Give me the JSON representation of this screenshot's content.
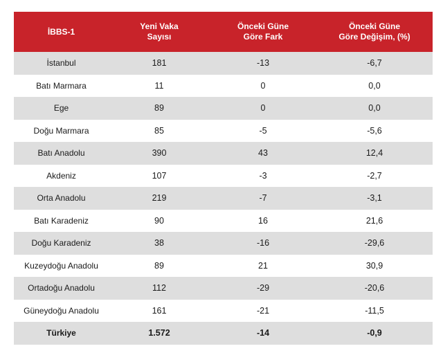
{
  "table": {
    "headers": [
      {
        "line1": "İBBS-1",
        "line2": ""
      },
      {
        "line1": "Yeni Vaka",
        "line2": "Sayısı"
      },
      {
        "line1": "Önceki Güne",
        "line2": "Göre Fark"
      },
      {
        "line1": "Önceki Güne",
        "line2": "Göre Değişim, (%)"
      }
    ],
    "rows": [
      {
        "region": "İstanbul",
        "new_cases": "181",
        "diff": "-13",
        "change": "-6,7"
      },
      {
        "region": "Batı Marmara",
        "new_cases": "11",
        "diff": "0",
        "change": "0,0"
      },
      {
        "region": "Ege",
        "new_cases": "89",
        "diff": "0",
        "change": "0,0"
      },
      {
        "region": "Doğu Marmara",
        "new_cases": "85",
        "diff": "-5",
        "change": "-5,6"
      },
      {
        "region": "Batı Anadolu",
        "new_cases": "390",
        "diff": "43",
        "change": "12,4"
      },
      {
        "region": "Akdeniz",
        "new_cases": "107",
        "diff": "-3",
        "change": "-2,7"
      },
      {
        "region": "Orta Anadolu",
        "new_cases": "219",
        "diff": "-7",
        "change": "-3,1"
      },
      {
        "region": "Batı Karadeniz",
        "new_cases": "90",
        "diff": "16",
        "change": "21,6"
      },
      {
        "region": "Doğu Karadeniz",
        "new_cases": "38",
        "diff": "-16",
        "change": "-29,6"
      },
      {
        "region": "Kuzeydoğu Anadolu",
        "new_cases": "89",
        "diff": "21",
        "change": "30,9"
      },
      {
        "region": "Ortadoğu Anadolu",
        "new_cases": "112",
        "diff": "-29",
        "change": "-20,6"
      },
      {
        "region": "Güneydoğu Anadolu",
        "new_cases": "161",
        "diff": "-21",
        "change": "-11,5"
      }
    ],
    "total": {
      "region": "Türkiye",
      "new_cases": "1.572",
      "diff": "-14",
      "change": "-0,9"
    }
  },
  "colors": {
    "header_bg": "#c8232a",
    "header_text": "#ffffff",
    "shaded_row": "#dedede"
  }
}
